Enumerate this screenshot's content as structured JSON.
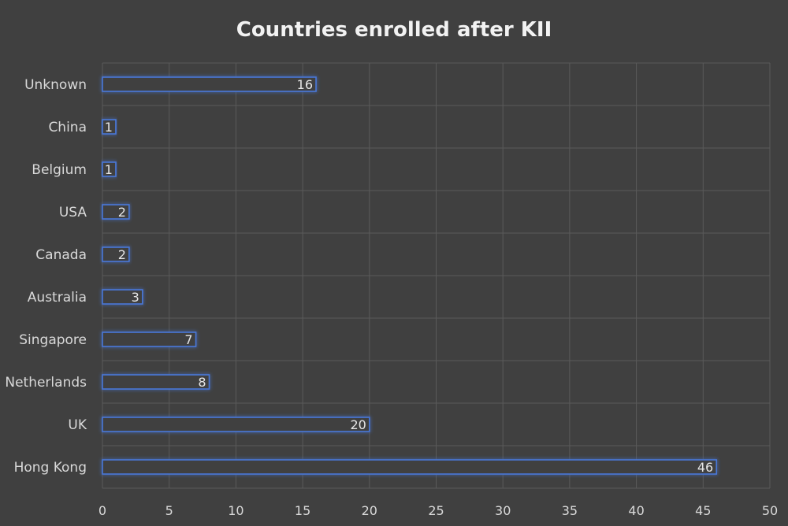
{
  "chart_data": {
    "type": "bar",
    "orientation": "horizontal",
    "title": "Countries enrolled after KII",
    "categories": [
      "Unknown",
      "China",
      "Belgium",
      "USA",
      "Canada",
      "Australia",
      "Singapore",
      "Netherlands",
      "UK",
      "Hong Kong"
    ],
    "values": [
      16,
      1,
      1,
      2,
      2,
      3,
      7,
      8,
      20,
      46
    ],
    "xlim": [
      0,
      50
    ],
    "xticks": [
      0,
      5,
      10,
      15,
      20,
      25,
      30,
      35,
      40,
      45,
      50
    ],
    "grid": true,
    "colors": {
      "background": "#404040",
      "bar_outline": "#4a78d8",
      "grid": "#5a5a5a",
      "text": "#d9d9d9"
    }
  }
}
